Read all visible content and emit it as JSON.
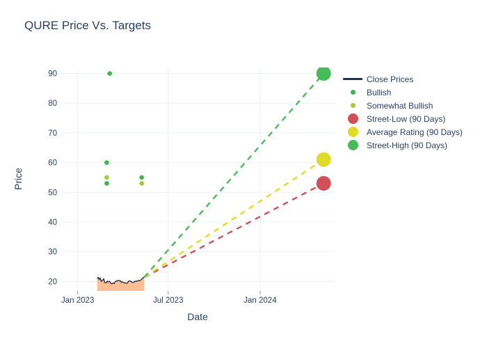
{
  "title": "QURE Price Vs. Targets",
  "colors": {
    "text": "#2a3f5f",
    "grid": "#ebf0f8",
    "tick": "#8a97ab",
    "background": "#ffffff",
    "close_line": "#253246",
    "close_fill": "#ffbe96",
    "bullish": "#3fb44c",
    "somewhat_bullish": "#a3ca37",
    "street_low": "#d14f58",
    "average_rating": "#dfdb2b",
    "street_high": "#48bb59"
  },
  "chart_data": {
    "type": "line",
    "title": "QURE Price Vs. Targets",
    "xlabel": "Date",
    "ylabel": "Price",
    "grid": true,
    "legend_position": "right",
    "x_epoch": "2023-01-01",
    "x_range_days": [
      -33,
      514
    ],
    "y_range": [
      16.8,
      92.0
    ],
    "x_ticks": [
      {
        "label": "Jan 2023",
        "date": "2023-01-01"
      },
      {
        "label": "Jul 2023",
        "date": "2023-07-01"
      },
      {
        "label": "Jan 2024",
        "date": "2024-01-01"
      }
    ],
    "y_ticks": [
      20,
      30,
      40,
      50,
      60,
      70,
      80,
      90
    ],
    "close_prices": {
      "name": "Close Prices",
      "color": "#253246",
      "fill_color": "#ffbe96",
      "points": [
        {
          "date": "2023-02-09",
          "price": 21.0
        },
        {
          "date": "2023-02-11",
          "price": 21.4
        },
        {
          "date": "2023-02-13",
          "price": 20.6
        },
        {
          "date": "2023-02-15",
          "price": 21.2
        },
        {
          "date": "2023-02-17",
          "price": 20.0
        },
        {
          "date": "2023-02-20",
          "price": 20.4
        },
        {
          "date": "2023-02-22",
          "price": 20.9
        },
        {
          "date": "2023-02-24",
          "price": 19.6
        },
        {
          "date": "2023-02-27",
          "price": 19.5
        },
        {
          "date": "2023-03-01",
          "price": 20.1
        },
        {
          "date": "2023-03-03",
          "price": 19.9
        },
        {
          "date": "2023-03-06",
          "price": 20.0
        },
        {
          "date": "2023-03-08",
          "price": 19.4
        },
        {
          "date": "2023-03-10",
          "price": 19.2
        },
        {
          "date": "2023-03-13",
          "price": 19.5
        },
        {
          "date": "2023-03-15",
          "price": 19.3
        },
        {
          "date": "2023-03-17",
          "price": 19.9
        },
        {
          "date": "2023-03-20",
          "price": 20.2
        },
        {
          "date": "2023-03-23",
          "price": 20.3
        },
        {
          "date": "2023-03-27",
          "price": 20.2
        },
        {
          "date": "2023-03-29",
          "price": 19.7
        },
        {
          "date": "2023-03-31",
          "price": 19.9
        },
        {
          "date": "2023-04-03",
          "price": 19.6
        },
        {
          "date": "2023-04-05",
          "price": 19.5
        },
        {
          "date": "2023-04-10",
          "price": 19.4
        },
        {
          "date": "2023-04-12",
          "price": 19.9
        },
        {
          "date": "2023-04-14",
          "price": 20.2
        },
        {
          "date": "2023-04-18",
          "price": 20.0
        },
        {
          "date": "2023-04-21",
          "price": 19.6
        },
        {
          "date": "2023-04-24",
          "price": 19.8
        },
        {
          "date": "2023-04-26",
          "price": 20.1
        },
        {
          "date": "2023-04-28",
          "price": 20.0
        },
        {
          "date": "2023-05-02",
          "price": 20.3
        },
        {
          "date": "2023-05-04",
          "price": 20.2
        },
        {
          "date": "2023-05-08",
          "price": 20.6
        },
        {
          "date": "2023-05-10",
          "price": 21.0
        },
        {
          "date": "2023-05-12",
          "price": 21.3
        },
        {
          "date": "2023-05-14",
          "price": 21.4
        }
      ]
    },
    "ratings": [
      {
        "name": "Bullish",
        "color": "#3fb44c",
        "marker_radius": 3.3,
        "points": [
          {
            "date": "2023-03-06",
            "price": 90
          },
          {
            "date": "2023-02-28",
            "price": 60
          },
          {
            "date": "2023-02-28",
            "price": 53
          },
          {
            "date": "2023-05-09",
            "price": 55
          }
        ]
      },
      {
        "name": "Somewhat Bullish",
        "color": "#a3ca37",
        "marker_radius": 3.3,
        "points": [
          {
            "date": "2023-02-28",
            "price": 55
          },
          {
            "date": "2023-05-09",
            "price": 53
          }
        ]
      }
    ],
    "targets": [
      {
        "name": "Street-Low (90 Days)",
        "color": "#d14f58",
        "start": {
          "date": "2023-05-14",
          "price": 21.4
        },
        "end": {
          "date": "2024-05-07",
          "price": 53
        },
        "marker_radius": 10.5
      },
      {
        "name": "Average Rating (90 Days)",
        "color": "#dfdb2b",
        "start": {
          "date": "2023-05-14",
          "price": 21.4
        },
        "end": {
          "date": "2024-05-07",
          "price": 61
        },
        "marker_radius": 10.5
      },
      {
        "name": "Street-High (90 Days)",
        "color": "#48bb59",
        "start": {
          "date": "2023-05-14",
          "price": 21.4
        },
        "end": {
          "date": "2024-05-07",
          "price": 90
        },
        "marker_radius": 10.5
      }
    ],
    "legend": [
      {
        "label": "Close Prices",
        "marker": "line",
        "color": "#253246"
      },
      {
        "label": "Bullish",
        "marker": "dot-small",
        "color": "#3fb44c"
      },
      {
        "label": "Somewhat Bullish",
        "marker": "dot-small",
        "color": "#a3ca37"
      },
      {
        "label": "Street-Low (90 Days)",
        "marker": "dot-large",
        "color": "#d14f58"
      },
      {
        "label": "Average Rating (90 Days)",
        "marker": "dot-large",
        "color": "#dfdb2b"
      },
      {
        "label": "Street-High (90 Days)",
        "marker": "dot-large",
        "color": "#48bb59"
      }
    ]
  }
}
